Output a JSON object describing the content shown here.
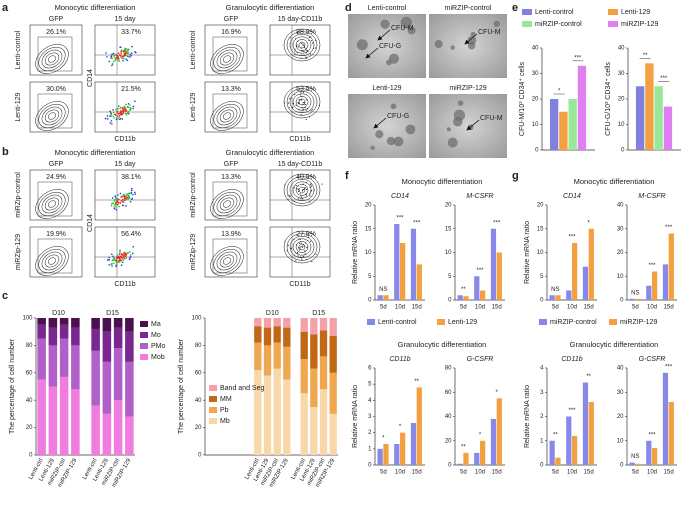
{
  "panel_labels": [
    "a",
    "b",
    "c",
    "d",
    "e",
    "f",
    "g"
  ],
  "flow_panels": [
    {
      "rows": [
        "Lenti-control",
        "Lenti-129"
      ],
      "sections": [
        {
          "title": "Monocytic differentiation",
          "columns": [
            "GFP",
            "15 day"
          ],
          "percent_gfp": [
            "26.1%",
            "30.0%"
          ],
          "percent_pos": [
            "33.7%",
            "21.5%"
          ],
          "y_label": "CD14",
          "x_label": "CD11b"
        },
        {
          "title": "Granulocytic differentiation",
          "columns": [
            "GFP",
            "15 day-CD11b"
          ],
          "percent_gfp": [
            "16.9%",
            "13.3%"
          ],
          "percent_pos": [
            "88.9%",
            "53.5%"
          ],
          "x_label": "CD11b"
        }
      ]
    },
    {
      "rows": [
        "miRZip-control",
        "miRZip-129"
      ],
      "sections": [
        {
          "title": "Monocytic differentiation",
          "columns": [
            "GFP",
            "15 day"
          ],
          "percent_gfp": [
            "24.9%",
            "19.9%"
          ],
          "percent_pos": [
            "38.1%",
            "56.4%"
          ],
          "y_label": "CD14",
          "x_label": "CD11b"
        },
        {
          "title": "Granulocytic differentiation",
          "columns": [
            "GFP",
            "15 day-CD11b"
          ],
          "percent_gfp": [
            "13.3%",
            "13.9%"
          ],
          "percent_pos": [
            "40.9%",
            "27.9%"
          ],
          "x_label": "CD11b"
        }
      ]
    }
  ],
  "colonies": {
    "images": [
      {
        "name": "Lenti-control",
        "arrows": [
          "CFU-M",
          "CFU-G"
        ]
      },
      {
        "name": "miRZIP-control",
        "arrows": [
          "CFU-M"
        ]
      },
      {
        "name": "Lenti-129",
        "arrows": [
          "CFU-G"
        ]
      },
      {
        "name": "miRZIP-129",
        "arrows": [
          "CFU-M"
        ]
      }
    ]
  },
  "mrna_panels": [
    {
      "titles": [
        "Monocytic differentiation",
        "Granulocytic differentiation"
      ]
    },
    {
      "titles": [
        "Monocytic differentiation",
        "Granulocytic differentiation"
      ]
    }
  ],
  "chart_data": [
    {
      "type": "stacked_bar",
      "y_label": "The percentage of cell number",
      "groups": [
        "D10",
        "D15"
      ],
      "categories": [
        "Lenti-ctrl",
        "Lenti-129",
        "miRZIP-ctrl",
        "miRZIP-129",
        "Lenti-ctrl",
        "Lenti-129",
        "miRZIP-ctrl",
        "miRZIP-129"
      ],
      "ylim": [
        0,
        100
      ],
      "yticks": [
        0,
        20,
        40,
        60,
        80,
        100
      ],
      "legend": "right",
      "series": [
        {
          "name": "Mob",
          "color": "#f07ce0",
          "values": [
            55,
            50,
            57,
            48,
            36,
            30,
            40,
            28
          ]
        },
        {
          "name": "PMo",
          "color": "#b060c8",
          "values": [
            30,
            30,
            28,
            32,
            40,
            38,
            38,
            40
          ]
        },
        {
          "name": "Mo",
          "color": "#7a2890",
          "values": [
            10,
            13,
            10,
            13,
            16,
            22,
            15,
            22
          ]
        },
        {
          "name": "Ma",
          "color": "#4a1050",
          "values": [
            5,
            7,
            5,
            7,
            8,
            10,
            7,
            10
          ]
        }
      ]
    },
    {
      "type": "stacked_bar",
      "y_label": "The percentage of cell number",
      "groups": [
        "D10",
        "D15"
      ],
      "categories": [
        "Lenti-ctrl",
        "Lenti-129",
        "miRZIP-ctrl",
        "miRZIP-129",
        "Lenti-ctrl",
        "Lenti-129",
        "miRZIP-ctrl",
        "miRZIP-129"
      ],
      "ylim": [
        0,
        100
      ],
      "yticks": [
        0,
        20,
        40,
        60,
        80,
        100
      ],
      "legend": "left",
      "series": [
        {
          "name": "Mb",
          "color": "#f8d8a8",
          "values": [
            62,
            58,
            63,
            55,
            45,
            35,
            48,
            30
          ]
        },
        {
          "name": "Pb",
          "color": "#f0a850",
          "values": [
            20,
            22,
            19,
            24,
            25,
            28,
            24,
            30
          ]
        },
        {
          "name": "MM",
          "color": "#c06818",
          "values": [
            12,
            13,
            12,
            14,
            20,
            25,
            19,
            27
          ]
        },
        {
          "name": "Band and Seg",
          "color": "#f4a0a8",
          "values": [
            6,
            7,
            6,
            7,
            10,
            12,
            9,
            13
          ]
        }
      ]
    },
    {
      "type": "bar",
      "y_label": "CFU-M/10³ CD34⁺ cells",
      "categories": [
        null
      ],
      "ylim": [
        0,
        40
      ],
      "yticks": [
        0,
        10,
        20,
        30,
        40
      ],
      "legend": "top",
      "pair_significance": [
        "*",
        "***"
      ],
      "series": [
        {
          "name": "Lenti-control",
          "color": "#8080e0",
          "values": [
            20
          ]
        },
        {
          "name": "Lenti-129",
          "color": "#f4a040",
          "values": [
            15
          ]
        },
        {
          "name": "miRZIP-control",
          "color": "#98e898",
          "values": [
            20
          ]
        },
        {
          "name": "miRZIP-129",
          "color": "#e080f0",
          "values": [
            33
          ]
        }
      ]
    },
    {
      "type": "bar",
      "y_label": "CFU-G/10³ CD34⁺ cells",
      "categories": [
        null
      ],
      "ylim": [
        0,
        40
      ],
      "yticks": [
        0,
        10,
        20,
        30,
        40
      ],
      "pair_significance": [
        "**",
        "***"
      ],
      "series": [
        {
          "name": "Lenti-control",
          "color": "#8080e0",
          "values": [
            25
          ]
        },
        {
          "name": "Lenti-129",
          "color": "#f4a040",
          "values": [
            34
          ]
        },
        {
          "name": "miRZIP-control",
          "color": "#98e898",
          "values": [
            25
          ]
        },
        {
          "name": "miRZIP-129",
          "color": "#e080f0",
          "values": [
            17
          ]
        }
      ]
    },
    {
      "type": "bar",
      "title": "CD14",
      "y_label": "Relative mRNA ratio",
      "categories": [
        "5d",
        "10d",
        "15d"
      ],
      "ylim": [
        0,
        20
      ],
      "yticks": [
        0,
        5,
        10,
        15,
        20
      ],
      "legend": "bottom",
      "significance": [
        "NS",
        "***",
        "***"
      ],
      "series": [
        {
          "name": "Lenti-control",
          "color": "#8888e8",
          "values": [
            1,
            16,
            15
          ]
        },
        {
          "name": "Lenti-129",
          "color": "#f4a040",
          "values": [
            1,
            12,
            7.5
          ]
        }
      ]
    },
    {
      "type": "bar",
      "title": "M-CSFR",
      "categories": [
        "5d",
        "10d",
        "15d"
      ],
      "ylim": [
        0,
        20
      ],
      "yticks": [
        0,
        5,
        10,
        15,
        20
      ],
      "significance": [
        "**",
        "***",
        "***"
      ],
      "series": [
        {
          "name": "Lenti-control",
          "color": "#8888e8",
          "values": [
            1,
            5,
            15
          ]
        },
        {
          "name": "Lenti-129",
          "color": "#f4a040",
          "values": [
            0.8,
            2,
            10
          ]
        }
      ]
    },
    {
      "type": "bar",
      "title": "CD11b",
      "y_label": "Relative mRNA ratio",
      "categories": [
        "5d",
        "10d",
        "15d"
      ],
      "ylim": [
        0,
        6
      ],
      "yticks": [
        0,
        1,
        2,
        3,
        4,
        5,
        6
      ],
      "significance": [
        "*",
        "*",
        "**"
      ],
      "series": [
        {
          "name": "Lenti-control",
          "color": "#8888e8",
          "values": [
            1,
            1.3,
            2.6
          ]
        },
        {
          "name": "Lenti-129",
          "color": "#f4a040",
          "values": [
            1.3,
            2,
            4.8
          ]
        }
      ]
    },
    {
      "type": "bar",
      "title": "G-CSFR",
      "categories": [
        "5d",
        "10d",
        "15d"
      ],
      "ylim": [
        0,
        80
      ],
      "yticks": [
        0,
        20,
        40,
        60,
        80
      ],
      "significance": [
        "**",
        "*",
        "*"
      ],
      "series": [
        {
          "name": "Lenti-control",
          "color": "#8888e8",
          "values": [
            1,
            10,
            38
          ]
        },
        {
          "name": "Lenti-129",
          "color": "#f4a040",
          "values": [
            10,
            20,
            55
          ]
        }
      ]
    },
    {
      "type": "bar",
      "title": "CD14",
      "y_label": "Relative mRNA ratio",
      "categories": [
        "5d",
        "10d",
        "15d"
      ],
      "ylim": [
        0,
        20
      ],
      "yticks": [
        0,
        5,
        10,
        15,
        20
      ],
      "legend": "bottom",
      "significance": [
        "NS",
        "***",
        "*"
      ],
      "series": [
        {
          "name": "miRZIP-control",
          "color": "#8888e8",
          "values": [
            1,
            2,
            7
          ]
        },
        {
          "name": "miRZIP-129",
          "color": "#f4a040",
          "values": [
            1,
            12,
            15
          ]
        }
      ]
    },
    {
      "type": "bar",
      "title": "M-CSFR",
      "categories": [
        "5d",
        "10d",
        "15d"
      ],
      "ylim": [
        0,
        40
      ],
      "yticks": [
        0,
        10,
        20,
        30,
        40
      ],
      "significance": [
        "NS",
        "***",
        "***"
      ],
      "series": [
        {
          "name": "miRZIP-control",
          "color": "#8888e8",
          "values": [
            0.5,
            6,
            15
          ]
        },
        {
          "name": "miRZIP-129",
          "color": "#f4a040",
          "values": [
            0.5,
            12,
            28
          ]
        }
      ]
    },
    {
      "type": "bar",
      "title": "CD11b",
      "y_label": "Relative mRNA ratio",
      "categories": [
        "5d",
        "10d",
        "15d"
      ],
      "ylim": [
        0,
        4
      ],
      "yticks": [
        0,
        1,
        2,
        3,
        4
      ],
      "significance": [
        "**",
        "***",
        "**"
      ],
      "series": [
        {
          "name": "miRZIP-control",
          "color": "#8888e8",
          "values": [
            1,
            2,
            3.4
          ]
        },
        {
          "name": "miRZIP-129",
          "color": "#f4a040",
          "values": [
            0.3,
            1.2,
            2.6
          ]
        }
      ]
    },
    {
      "type": "bar",
      "title": "G-CSFR",
      "categories": [
        "5d",
        "10d",
        "15d"
      ],
      "ylim": [
        0,
        40
      ],
      "yticks": [
        0,
        10,
        20,
        30,
        40
      ],
      "significance": [
        "NS",
        "***",
        "***"
      ],
      "series": [
        {
          "name": "miRZIP-control",
          "color": "#8888e8",
          "values": [
            1,
            10,
            38
          ]
        },
        {
          "name": "miRZIP-129",
          "color": "#f4a040",
          "values": [
            0.5,
            7,
            26
          ]
        }
      ]
    }
  ]
}
